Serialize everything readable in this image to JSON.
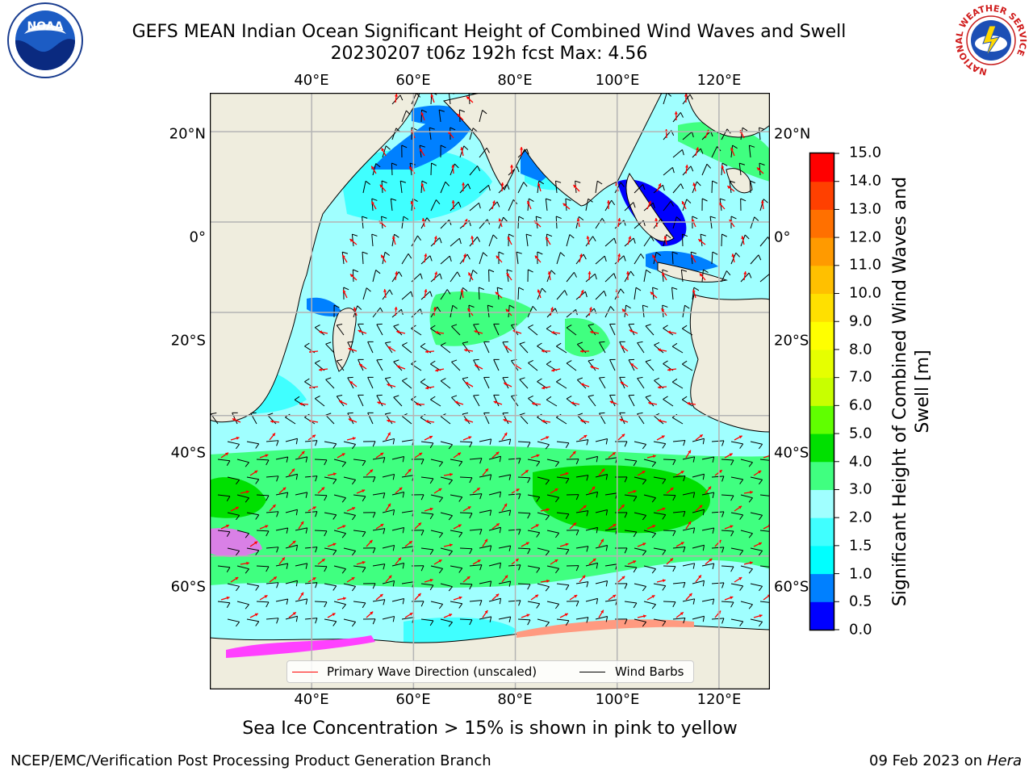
{
  "header": {
    "title_line1": "GEFS MEAN Indian Ocean Significant Height of Combined Wind Waves and Swell",
    "title_line2": "20230207 t06z 192h fcst   Max: 4.56"
  },
  "map": {
    "lon_labels": [
      "40°E",
      "60°E",
      "80°E",
      "100°E",
      "120°E"
    ],
    "lat_labels": [
      "20°N",
      "0°",
      "20°S",
      "40°S",
      "60°S"
    ],
    "lon_values": [
      40,
      60,
      80,
      100,
      120
    ],
    "lat_values": [
      20,
      0,
      -20,
      -40,
      -60
    ],
    "extent": {
      "lon": [
        20,
        130
      ],
      "lat": [
        -72,
        28
      ]
    },
    "gridlines": true
  },
  "colorbar": {
    "title": "Significant Height of Combined Wind Waves and Swell [m]",
    "labels": [
      "0.0",
      "0.5",
      "1.0",
      "1.5",
      "2.0",
      "3.0",
      "4.0",
      "5.0",
      "6.0",
      "7.0",
      "8.0",
      "9.0",
      "10.0",
      "11.0",
      "12.0",
      "13.0",
      "14.0",
      "15.0"
    ],
    "colors": [
      "#0000ff",
      "#0080ff",
      "#00ffff",
      "#40ffff",
      "#a0ffff",
      "#40ff80",
      "#00e000",
      "#60ff00",
      "#c8ff00",
      "#e6ff00",
      "#ffff00",
      "#ffe000",
      "#ffc000",
      "#ff9a00",
      "#ff7000",
      "#ff4000",
      "#ff0000"
    ]
  },
  "legend": {
    "primary_wave_label": "Primary Wave Direction (unscaled)",
    "wind_barbs_label": "Wind Barbs",
    "primary_wave_color": "#ff0000",
    "wind_barb_color": "#000000"
  },
  "footer": {
    "note": "Sea Ice Concentration > 15% is shown in pink to yellow",
    "credit": "NCEP/EMC/Verification Post Processing Product Generation Branch",
    "date": "09 Feb 2023 on",
    "machine": "Hera"
  },
  "logos": {
    "noaa_text": "NOAA",
    "nws_ring_text": "NATIONAL WEATHER SERVICE"
  },
  "colors": {
    "land": "#efedde",
    "ocean_base": "#a0ffff",
    "grid": "#b4b4b4"
  }
}
